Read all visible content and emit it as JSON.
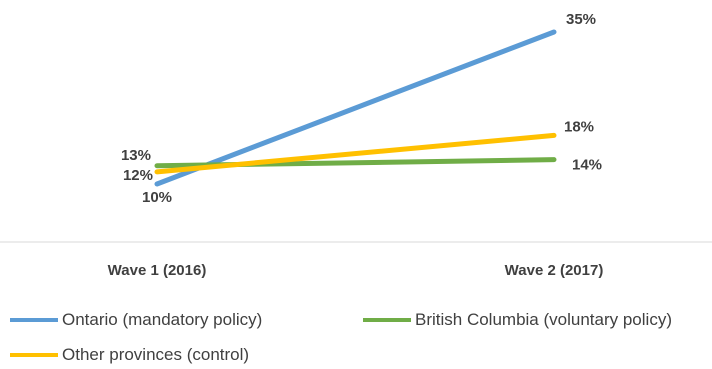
{
  "chart_data": {
    "type": "line",
    "categories": [
      "Wave 1 (2016)",
      "Wave 2 (2017)"
    ],
    "series": [
      {
        "name": "Ontario (mandatory policy)",
        "values": [
          10,
          35
        ],
        "labels": [
          "10%",
          "35%"
        ],
        "color": "#5B9BD5"
      },
      {
        "name": "British Columbia (voluntary policy)",
        "values": [
          13,
          14
        ],
        "labels": [
          "13%",
          "14%"
        ],
        "color": "#70AD47"
      },
      {
        "name": "Other provinces (control)",
        "values": [
          12,
          18
        ],
        "labels": [
          "12%",
          "18%"
        ],
        "color": "#FFC000"
      }
    ],
    "ylim": [
      0,
      40
    ],
    "grid": false,
    "legend_position": "bottom"
  }
}
